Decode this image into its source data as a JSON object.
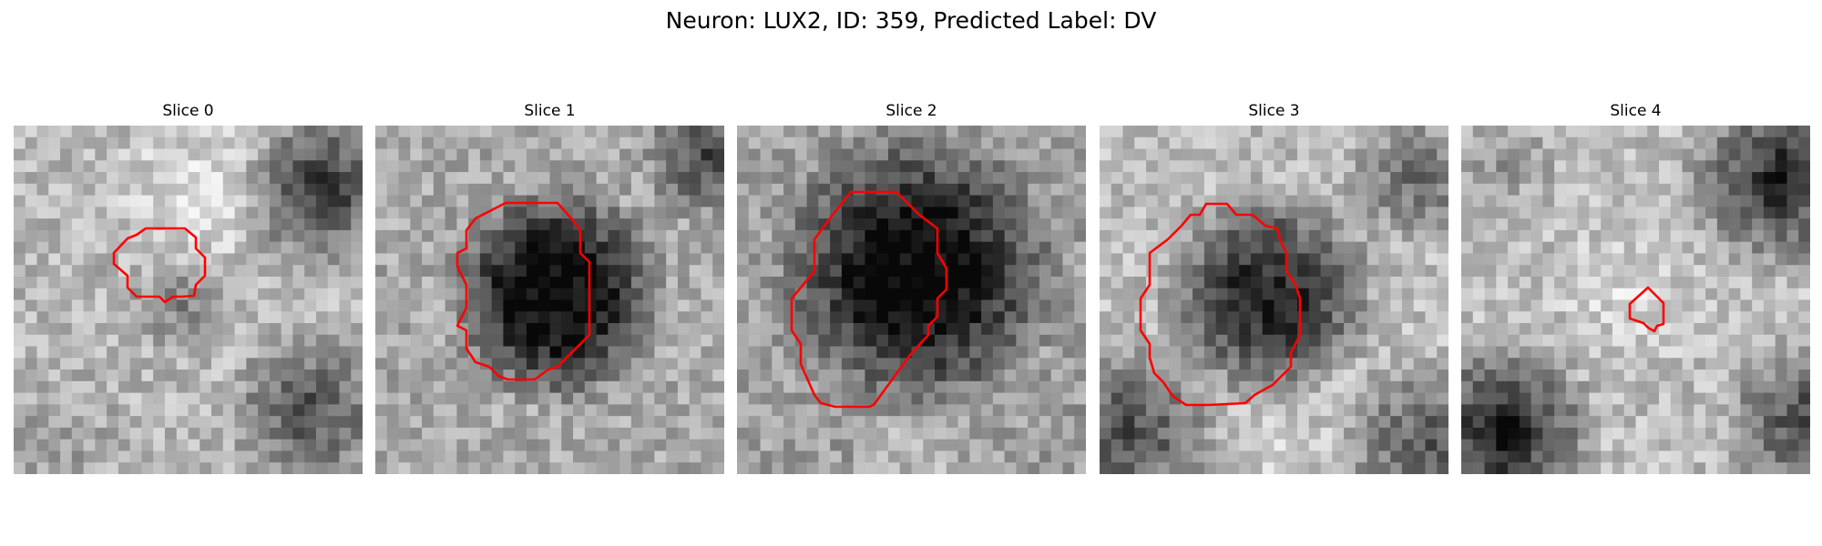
{
  "figure": {
    "title": "Neuron: LUX2, ID: 359, Predicted Label: DV"
  },
  "panels": [
    {
      "title": "Slice 0",
      "texture": "bright-center-dark-right",
      "roi": "medium"
    },
    {
      "title": "Slice 1",
      "texture": "dark-soma",
      "roi": "large"
    },
    {
      "title": "Slice 2",
      "texture": "dark-soma-darkest",
      "roi": "largest"
    },
    {
      "title": "Slice 3",
      "texture": "dark-soma-bright-ring",
      "roi": "large"
    },
    {
      "title": "Slice 4",
      "texture": "bright-cross-dark-corners",
      "roi": "small"
    }
  ],
  "colors": {
    "contour": "#ff0000"
  }
}
